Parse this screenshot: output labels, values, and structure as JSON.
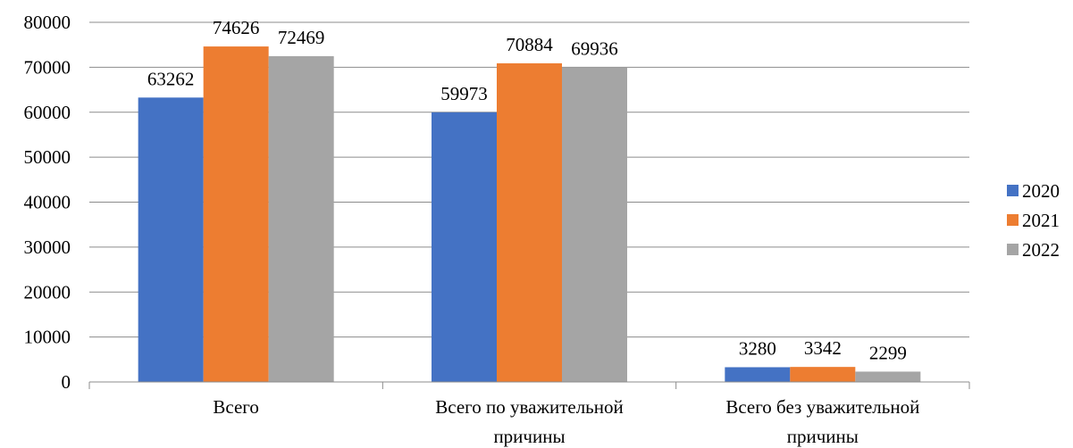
{
  "chart_data": {
    "type": "bar",
    "categories": [
      [
        "Всего"
      ],
      [
        "Всего по уважительной",
        "причины"
      ],
      [
        "Всего без уважительной",
        "причины"
      ]
    ],
    "series": [
      {
        "name": "2020",
        "color": "#4472C4",
        "values": [
          63262,
          59973,
          3280
        ]
      },
      {
        "name": "2021",
        "color": "#ED7D31",
        "values": [
          74626,
          70884,
          3342
        ]
      },
      {
        "name": "2022",
        "color": "#A5A5A5",
        "values": [
          72469,
          69936,
          2299
        ]
      }
    ],
    "ylim": [
      0,
      80000
    ],
    "yticks": [
      0,
      10000,
      20000,
      30000,
      40000,
      50000,
      60000,
      70000,
      80000
    ],
    "grid": true,
    "legend": "right",
    "data_labels": true
  }
}
